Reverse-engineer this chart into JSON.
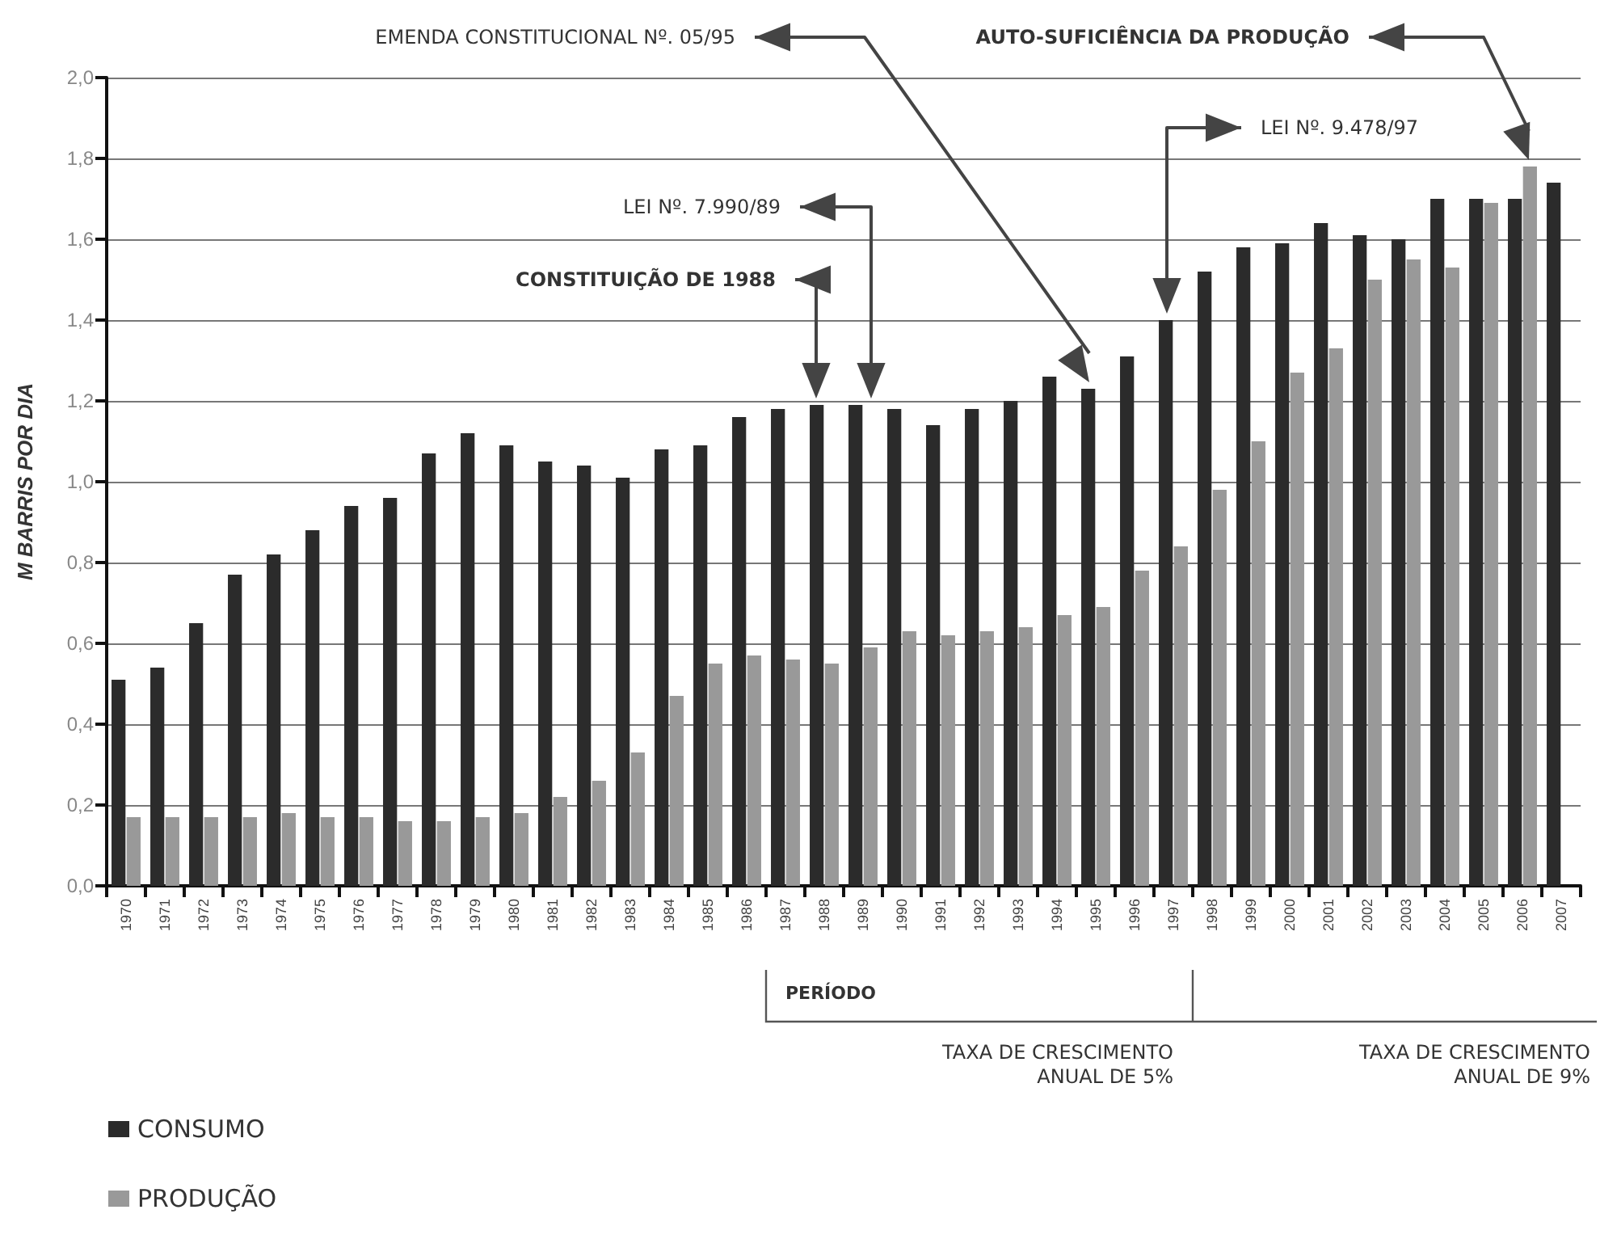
{
  "chart_data": {
    "type": "bar",
    "ylabel": "M BARRIS POR DIA",
    "categories": [
      "1970",
      "1971",
      "1972",
      "1973",
      "1974",
      "1975",
      "1976",
      "1977",
      "1978",
      "1979",
      "1980",
      "1981",
      "1982",
      "1983",
      "1984",
      "1985",
      "1986",
      "1987",
      "1988",
      "1989",
      "1990",
      "1991",
      "1992",
      "1993",
      "1994",
      "1995",
      "1996",
      "1997",
      "1998",
      "1999",
      "2000",
      "2001",
      "2002",
      "2003",
      "2004",
      "2005",
      "2006",
      "2007"
    ],
    "series": [
      {
        "name": "CONSUMO",
        "color": "#2b2b2b",
        "values": [
          0.51,
          0.54,
          0.65,
          0.77,
          0.82,
          0.88,
          0.94,
          0.96,
          1.07,
          1.12,
          1.09,
          1.05,
          1.04,
          1.01,
          1.08,
          1.09,
          1.16,
          1.18,
          1.19,
          1.19,
          1.18,
          1.14,
          1.18,
          1.2,
          1.26,
          1.23,
          1.31,
          1.4,
          1.52,
          1.58,
          1.59,
          1.64,
          1.61,
          1.6,
          1.7,
          1.7,
          1.7,
          1.74
        ]
      },
      {
        "name": "PRODUÇÃO",
        "color": "#999999",
        "values": [
          0.17,
          0.17,
          0.17,
          0.17,
          0.18,
          0.17,
          0.17,
          0.16,
          0.16,
          0.17,
          0.18,
          0.22,
          0.26,
          0.33,
          0.47,
          0.55,
          0.57,
          0.56,
          0.55,
          0.59,
          0.63,
          0.62,
          0.63,
          0.64,
          0.67,
          0.69,
          0.78,
          0.84,
          0.98,
          1.1,
          1.27,
          1.33,
          1.5,
          1.55,
          1.53,
          1.69,
          1.78,
          null
        ]
      }
    ],
    "ylim": [
      0,
      2
    ],
    "yticks": [
      {
        "value": 0,
        "label": "0,0"
      },
      {
        "value": 0.2,
        "label": "0,2"
      },
      {
        "value": 0.4,
        "label": "0,4"
      },
      {
        "value": 0.6,
        "label": "0,6"
      },
      {
        "value": 0.8,
        "label": "0,8"
      },
      {
        "value": 1,
        "label": "1,0"
      },
      {
        "value": 1.2,
        "label": "1,2"
      },
      {
        "value": 1.4,
        "label": "1,4"
      },
      {
        "value": 1.6,
        "label": "1,6"
      },
      {
        "value": 1.8,
        "label": "1,8"
      },
      {
        "value": 2,
        "label": "2,0"
      }
    ],
    "grid": "y",
    "legend": "bottom left",
    "annotations": [
      "CONSTITUIÇÃO DE 1988",
      "LEI Nº. 7.990/89",
      "EMENDA CONSTITUCIONAL Nº. 05/95",
      "LEI Nº. 9.478/97",
      "AUTO-SUFICIÊNCIA DA PRODUÇÃO",
      "PERÍODO",
      "TAXA DE CRESCIMENTO\nANUAL DE 5%",
      "TAXA DE CRESCIMENTO\nANUAL DE 9%"
    ]
  }
}
